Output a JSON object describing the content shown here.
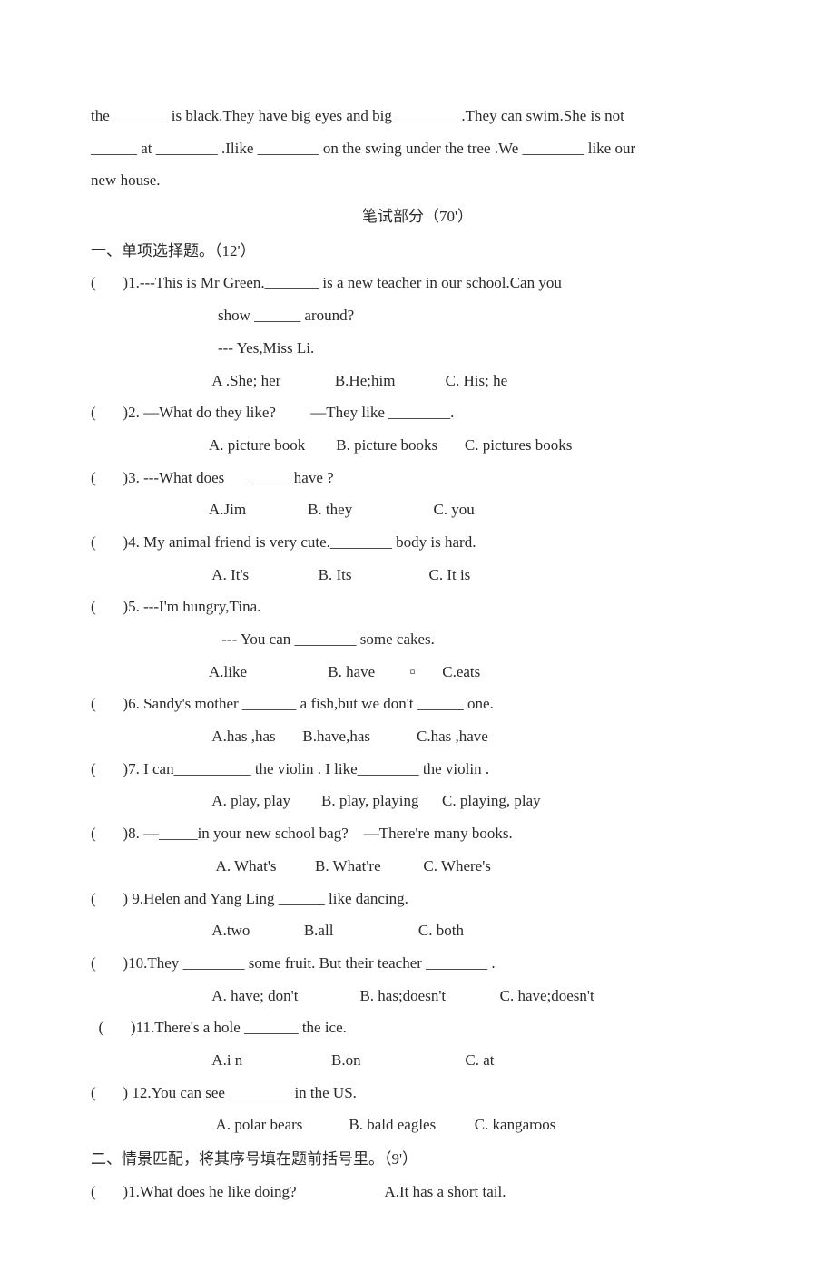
{
  "intro": {
    "line1": "the _______ is black.They have big eyes and big ________ .They can swim.She is not",
    "line2": "______ at ________ .Ilike ________ on the swing under the tree .We ________ like our",
    "line3": "new house."
  },
  "writtenHeading": "笔试部分（70'）",
  "section1": {
    "heading": " 一、单项选择题。（12'）",
    "q1": {
      "line": "(       )1.---This is Mr Green._______ is a new teacher in our school.Can you",
      "sub1": "show ______ around?",
      "sub2": "--- Yes,Miss Li.",
      "opts": " A .She; her              B.He;him             C. His; he"
    },
    "q2": {
      "line": "(       )2. —What do they like?         —They like ________.",
      "opts": "A. picture book        B. picture books       C. pictures books"
    },
    "q3": {
      "line": "(       )3. ---What does    _ _____ have ?",
      "opts": "A.Jim                B. they                     C. you"
    },
    "q4": {
      "line": "(       )4. My animal friend is very cute.________ body is hard.",
      "opts": " A. It's                  B. Its                    C. It is"
    },
    "q5": {
      "line": "(       )5. ---I'm hungry,Tina.",
      "sub1": " --- You can ________ some cakes.",
      "opts": "A.like                     B. have         ▫       C.eats"
    },
    "q6": {
      "line": "(       )6. Sandy's mother _______ a fish,but we don't ______ one.",
      "opts": " A.has ,has       B.have,has            C.has ,have"
    },
    "q7": {
      "line": "(       )7. I can__________ the violin . I like________ the violin .",
      "opts": " A. play, play        B. play, playing      C. playing, play"
    },
    "q8": {
      "line": "(       )8. —_____in your new school bag?    —There're many books.",
      "opts": "  A. What's          B. What're           C. Where's"
    },
    "q9": {
      "line": "(       ) 9.Helen and Yang Ling ______ like dancing.",
      "opts": " A.two              B.all                      C. both"
    },
    "q10": {
      "line": "(       )10.They ________ some fruit. But their teacher ________ .",
      "opts": " A. have; don't                B. has;doesn't              C. have;doesn't"
    },
    "q11": {
      "line": "  (       )11.There's a hole _______ the ice.",
      "opts": " A.i n                       B.on                           C. at"
    },
    "q12": {
      "line": "(       ) 12.You can see ________ in the US.",
      "opts": "  A. polar bears            B. bald eagles          C. kangaroos"
    }
  },
  "section2": {
    "heading": "二、情景匹配，将其序号填在题前括号里。（9'）",
    "q1": "(       )1.What does he like doing?                       A.It has a short tail."
  }
}
